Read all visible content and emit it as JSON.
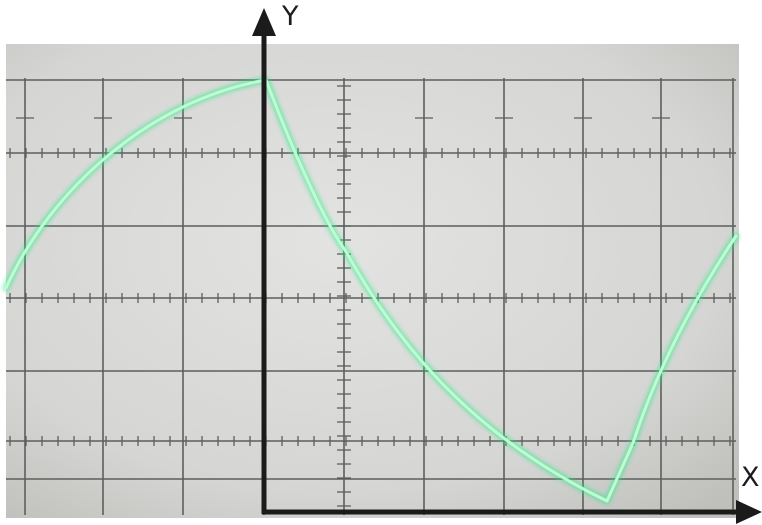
{
  "axes": {
    "y_label": "Y",
    "x_label": "X"
  },
  "colors": {
    "screen_light": "#dcdcda",
    "screen_dark": "#c4c5c1",
    "grid": "#5d5f5d",
    "trace": "#a9ffc5",
    "trace_glow": "#33e58b",
    "axis": "#1b1b1b"
  }
}
